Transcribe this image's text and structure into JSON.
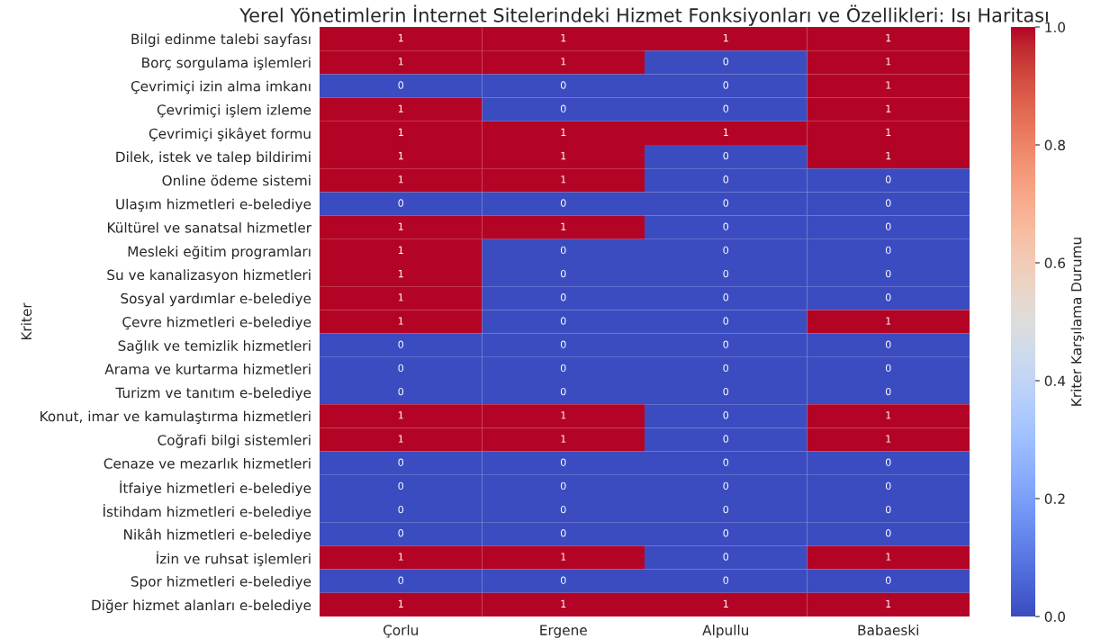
{
  "chart_data": {
    "type": "heatmap",
    "title": "Yerel Yönetimlerin İnternet Sitelerindeki Hizmet Fonksiyonları ve Özellikleri: Isı Haritası",
    "ylabel": "Kriter",
    "clabel": "Kriter Karşılama Durumu",
    "categories": [
      "Çorlu",
      "Ergene",
      "Alpullu",
      "Babaeski"
    ],
    "y_categories": [
      "Bilgi edinme talebi sayfası",
      "Borç sorgulama işlemleri",
      "Çevrimiçi izin alma imkanı",
      "Çevrimiçi işlem izleme",
      "Çevrimiçi şikâyet formu",
      "Dilek, istek ve talep bildirimi",
      "Online ödeme sistemi",
      "Ulaşım hizmetleri e-belediye",
      "Kültürel ve sanatsal hizmetler",
      "Mesleki eğitim programları",
      "Su ve kanalizasyon hizmetleri",
      "Sosyal yardımlar e-belediye",
      "Çevre hizmetleri e-belediye",
      "Sağlık ve temizlik hizmetleri",
      "Arama ve kurtarma hizmetleri",
      "Turizm ve tanıtım e-belediye",
      "Konut, imar ve kamulaştırma hizmetleri",
      "Coğrafi bilgi sistemleri",
      "Cenaze ve mezarlık hizmetleri",
      "İtfaiye hizmetleri e-belediye",
      "İstihdam hizmetleri e-belediye",
      "Nikâh hizmetleri e-belediye",
      "İzin ve ruhsat işlemleri",
      "Spor hizmetleri e-belediye",
      "Diğer hizmet alanları e-belediye"
    ],
    "cells": [
      [
        1,
        1,
        1,
        1
      ],
      [
        1,
        1,
        0,
        1
      ],
      [
        0,
        0,
        0,
        1
      ],
      [
        1,
        0,
        0,
        1
      ],
      [
        1,
        1,
        1,
        1
      ],
      [
        1,
        1,
        0,
        1
      ],
      [
        1,
        1,
        0,
        0
      ],
      [
        0,
        0,
        0,
        0
      ],
      [
        1,
        1,
        0,
        0
      ],
      [
        1,
        0,
        0,
        0
      ],
      [
        1,
        0,
        0,
        0
      ],
      [
        1,
        0,
        0,
        0
      ],
      [
        1,
        0,
        0,
        1
      ],
      [
        0,
        0,
        0,
        0
      ],
      [
        0,
        0,
        0,
        0
      ],
      [
        0,
        0,
        0,
        0
      ],
      [
        1,
        1,
        0,
        1
      ],
      [
        1,
        1,
        0,
        1
      ],
      [
        0,
        0,
        0,
        0
      ],
      [
        0,
        0,
        0,
        0
      ],
      [
        0,
        0,
        0,
        0
      ],
      [
        0,
        0,
        0,
        0
      ],
      [
        1,
        1,
        0,
        1
      ],
      [
        0,
        0,
        0,
        0
      ],
      [
        1,
        1,
        1,
        1
      ]
    ],
    "clim": [
      0,
      1
    ],
    "cticks": [
      {
        "value": 0,
        "label": "0.0"
      },
      {
        "value": 0.2,
        "label": "0.2"
      },
      {
        "value": 0.4,
        "label": "0.4"
      },
      {
        "value": 0.6,
        "label": "0.6"
      },
      {
        "value": 0.8,
        "label": "0.8"
      },
      {
        "value": 1,
        "label": "1.0"
      }
    ],
    "data_labels": true
  }
}
